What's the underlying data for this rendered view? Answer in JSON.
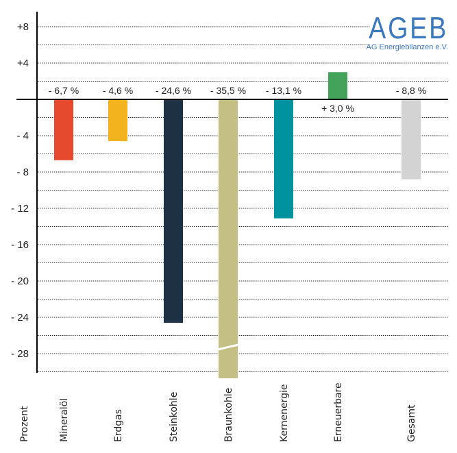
{
  "chart_data": {
    "type": "bar",
    "title": "",
    "xlabel": "",
    "ylabel": "Prozent",
    "ylim": [
      -30.3,
      9.5
    ],
    "grid": true,
    "grid_step": 2,
    "yticks": [
      8,
      4,
      -4,
      -8,
      -12,
      -16,
      -20,
      -24,
      -28
    ],
    "ytick_labels": [
      "+8",
      "+4",
      "- 4",
      "- 8",
      "- 12",
      "- 16",
      "- 20",
      "- 24",
      "- 28"
    ],
    "categories": [
      "Mineralöl",
      "Erdgas",
      "Steinkohle",
      "Braunkohle",
      "Kernenergie",
      "Erneuerbare",
      "Gesamt"
    ],
    "values": [
      -6.7,
      -4.6,
      -24.6,
      -35.5,
      -13.1,
      3.0,
      -8.8
    ],
    "data_labels": [
      "- 6,7 %",
      "- 4,6 %",
      "- 24,6 %",
      "- 35,5 %",
      "- 13,1 %",
      "+ 3,0 %",
      "- 8,8 %"
    ],
    "colors": [
      "#e64a2e",
      "#f2b31f",
      "#1d3044",
      "#c4bf85",
      "#00939f",
      "#43a35b",
      "#d3d3d3"
    ],
    "broken_bar": "Braunkohle"
  },
  "logo": {
    "text": "AGEB",
    "subtitle": "AG Energiebilanzen e.V.",
    "color": "#3a78c0"
  }
}
